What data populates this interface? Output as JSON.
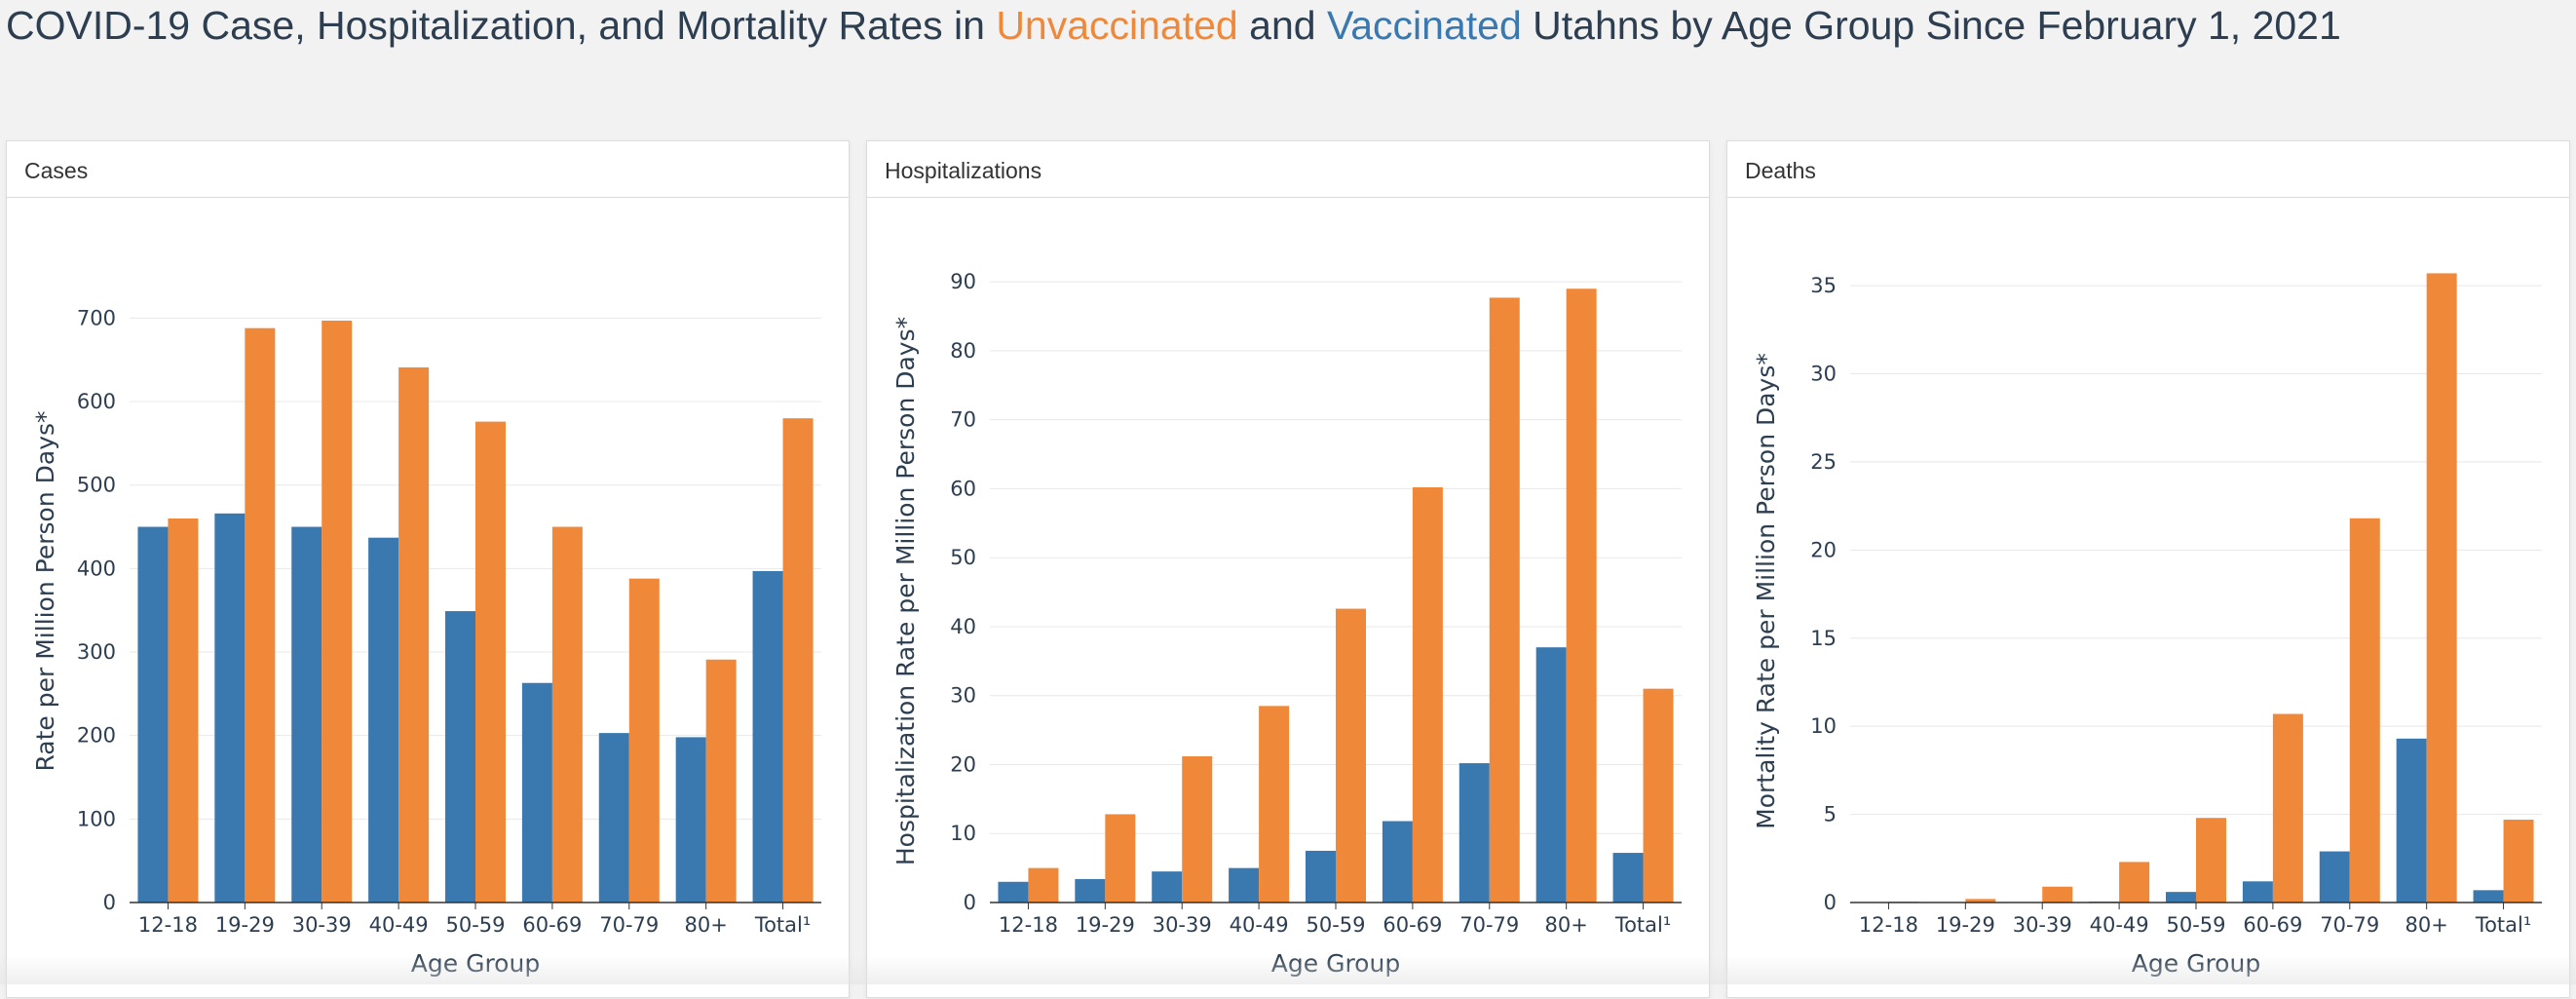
{
  "title": {
    "prefix": "COVID-19 Case, Hospitalization, and Mortality Rates in ",
    "unvaccinated": "Unvaccinated",
    "middle": " and ",
    "vaccinated": "Vaccinated",
    "suffix": " Utahns by Age Group Since February 1, 2021"
  },
  "colors": {
    "vaccinated": "#3a78b0",
    "unvaccinated": "#f0883a",
    "grid": "#e8e8e8",
    "axis": "#333333",
    "text": "#2c3e50"
  },
  "chart_data": [
    {
      "type": "bar",
      "panel_title": "Cases",
      "categories": [
        "12-18",
        "19-29",
        "30-39",
        "40-49",
        "50-59",
        "60-69",
        "70-79",
        "80+",
        "Total¹"
      ],
      "series": [
        {
          "key": "vaccinated",
          "values": [
            450,
            466,
            450,
            437,
            349,
            263,
            203,
            198,
            397
          ]
        },
        {
          "key": "unvaccinated",
          "values": [
            460,
            688,
            697,
            641,
            576,
            450,
            388,
            291,
            580
          ]
        }
      ],
      "xlabel": "Age Group",
      "ylabel": "Rate per Million Person Days*",
      "ylim": [
        0,
        760
      ],
      "yticks": [
        0,
        100,
        200,
        300,
        400,
        500,
        600,
        700
      ],
      "grid": true
    },
    {
      "type": "bar",
      "panel_title": "Hospitalizations",
      "categories": [
        "12-18",
        "19-29",
        "30-39",
        "40-49",
        "50-59",
        "60-69",
        "70-79",
        "80+",
        "Total¹"
      ],
      "series": [
        {
          "key": "vaccinated",
          "values": [
            3.0,
            3.4,
            4.5,
            5.0,
            7.5,
            11.8,
            20.2,
            37.0,
            7.2
          ]
        },
        {
          "key": "unvaccinated",
          "values": [
            5.0,
            12.8,
            21.2,
            28.5,
            42.6,
            60.2,
            87.7,
            89.0,
            31.0
          ]
        }
      ],
      "xlabel": "Age Group",
      "ylabel": "Hospitalization Rate per Million Person Days*",
      "ylim": [
        0,
        92
      ],
      "yticks": [
        0,
        10,
        20,
        30,
        40,
        50,
        60,
        70,
        80,
        90
      ],
      "grid": true
    },
    {
      "type": "bar",
      "panel_title": "Deaths",
      "categories": [
        "12-18",
        "19-29",
        "30-39",
        "40-49",
        "50-59",
        "60-69",
        "70-79",
        "80+",
        "Total¹"
      ],
      "series": [
        {
          "key": "vaccinated",
          "values": [
            0.0,
            0.0,
            0.0,
            0.05,
            0.6,
            1.2,
            2.9,
            9.3,
            0.7
          ]
        },
        {
          "key": "unvaccinated",
          "values": [
            0.05,
            0.2,
            0.9,
            2.3,
            4.8,
            10.7,
            21.8,
            35.7,
            4.7
          ]
        }
      ],
      "xlabel": "Age Group",
      "ylabel": "Mortality Rate per Million Person Days*",
      "ylim": [
        0,
        36
      ],
      "yticks": [
        0,
        5,
        10,
        15,
        20,
        25,
        30,
        35
      ],
      "grid": true
    }
  ]
}
